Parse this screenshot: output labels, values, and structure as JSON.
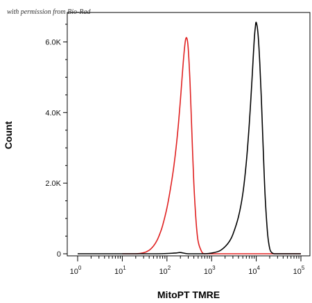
{
  "watermark": "with permission from Bio-Rad",
  "chart_data": {
    "type": "line",
    "title": "",
    "xlabel": "MitoPT TMRE",
    "ylabel": "Count",
    "x_scale": "log",
    "xlim": [
      1,
      100000
    ],
    "ylim": [
      0,
      6500
    ],
    "x_ticks": [
      {
        "value": 1,
        "base": "10",
        "exp": "0"
      },
      {
        "value": 10,
        "base": "10",
        "exp": "1"
      },
      {
        "value": 100,
        "base": "10",
        "exp": "2"
      },
      {
        "value": 1000,
        "base": "10",
        "exp": "3"
      },
      {
        "value": 10000,
        "base": "10",
        "exp": "4"
      },
      {
        "value": 100000,
        "base": "10",
        "exp": "5"
      }
    ],
    "y_ticks": [
      {
        "value": 0,
        "label": "0"
      },
      {
        "value": 2000,
        "label": "2.0K"
      },
      {
        "value": 4000,
        "label": "4.0K"
      },
      {
        "value": 6000,
        "label": "6.0K"
      }
    ],
    "grid": false,
    "series": [
      {
        "color": "#e02020",
        "x": [
          10,
          20,
          30,
          40,
          50,
          60,
          70,
          80,
          100,
          120,
          140,
          160,
          180,
          200,
          220,
          240,
          260,
          280,
          300,
          330,
          360,
          400,
          450,
          500,
          600,
          700,
          1000,
          10000,
          100000
        ],
        "y": [
          0,
          0,
          30,
          100,
          220,
          380,
          580,
          800,
          1300,
          1850,
          2400,
          3000,
          3650,
          4350,
          5050,
          5650,
          6050,
          6100,
          5800,
          4800,
          3500,
          2000,
          900,
          350,
          60,
          0,
          0,
          0,
          0
        ]
      },
      {
        "color": "#000000",
        "x": [
          1,
          50,
          150,
          200,
          300,
          700,
          1000,
          1500,
          2000,
          2500,
          3000,
          4000,
          5000,
          6000,
          7000,
          8000,
          8500,
          9000,
          9500,
          10000,
          11000,
          12000,
          13000,
          14000,
          15000,
          16000,
          18000,
          20000,
          22000,
          25000,
          30000,
          100000
        ],
        "y": [
          0,
          0,
          20,
          35,
          0,
          0,
          20,
          80,
          200,
          350,
          550,
          1050,
          1700,
          2600,
          3700,
          4900,
          5500,
          6050,
          6400,
          6550,
          6200,
          5400,
          4400,
          3300,
          2300,
          1500,
          550,
          150,
          40,
          0,
          0,
          0
        ]
      }
    ]
  }
}
